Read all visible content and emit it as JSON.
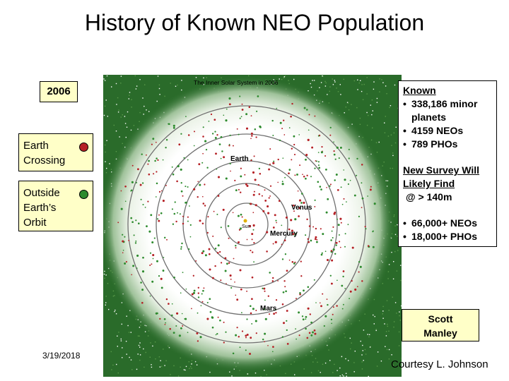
{
  "title": "History of Known NEO Population",
  "year": "2006",
  "legend": {
    "earth_crossing": {
      "line1": "Earth",
      "line2": "Crossing",
      "color": "#b52025"
    },
    "outside_orbit": {
      "line1": "Outside",
      "line2": "Earth’s",
      "line3": "Orbit",
      "color": "#2e8b2e"
    }
  },
  "map": {
    "caption": "The Inner Solar System in 2006",
    "labels": {
      "sun": "Sun",
      "mercury": "Mercury",
      "venus": "Venus",
      "earth": "Earth",
      "mars": "Mars"
    },
    "colors": {
      "background": "#2a6b2a",
      "clear": "#ffffff",
      "orbit": "#707070"
    }
  },
  "known": {
    "heading": "Known",
    "items": [
      "338,186 minor planets",
      "4159 NEOs",
      "789 PHOs"
    ],
    "survey_heading": "New Survey Will Likely Find",
    "survey_sub": "@ > 140m",
    "survey_items": [
      "66,000+ NEOs",
      "18,000+ PHOs"
    ]
  },
  "credit": {
    "line1": "Scott",
    "line2": "Manley"
  },
  "date": "3/19/2018",
  "courtesy": "Courtesy L. Johnson"
}
